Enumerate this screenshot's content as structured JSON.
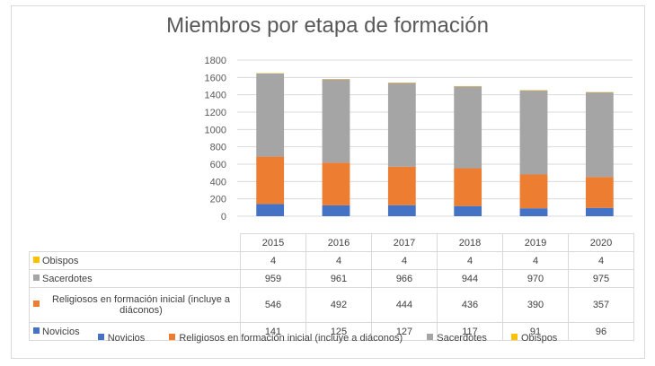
{
  "chart_data": {
    "type": "bar",
    "stacked": true,
    "title": "Miembros por etapa de formación",
    "categories": [
      "2015",
      "2016",
      "2017",
      "2018",
      "2019",
      "2020"
    ],
    "series": [
      {
        "name": "Novicios",
        "values": [
          141,
          125,
          127,
          117,
          91,
          96
        ],
        "color": "#4472c4"
      },
      {
        "name": "Religiosos en formación inicial (incluye a diáconos)",
        "values": [
          546,
          492,
          444,
          436,
          390,
          357
        ],
        "color": "#ed7d31"
      },
      {
        "name": "Sacerdotes",
        "values": [
          959,
          961,
          966,
          944,
          970,
          975
        ],
        "color": "#a5a5a5"
      },
      {
        "name": "Obispos",
        "values": [
          4,
          4,
          4,
          4,
          4,
          4
        ],
        "color": "#ffc000"
      }
    ],
    "ylim": [
      0,
      1800
    ],
    "yticks": [
      "0",
      "200",
      "400",
      "600",
      "800",
      "1000",
      "1200",
      "1400",
      "1600",
      "1800"
    ],
    "grid": true,
    "legend_position": "bottom",
    "table_row_labels": [
      "Obispos",
      "Sacerdotes",
      "Religiosos en formación inicial (incluye a diáconos)",
      "Novicios"
    ]
  }
}
